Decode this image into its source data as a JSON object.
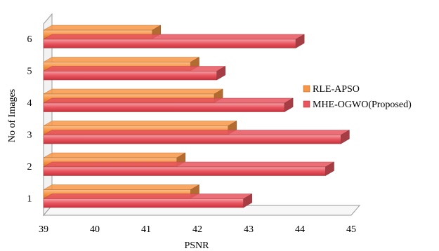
{
  "chart_data": {
    "type": "bar",
    "orientation": "horizontal",
    "style": "3d",
    "categories": [
      "1",
      "2",
      "3",
      "4",
      "5",
      "6"
    ],
    "series": [
      {
        "name": "RLE-APSO",
        "values": [
          41.87,
          41.6,
          42.6,
          42.33,
          41.87,
          41.12
        ],
        "color": "#F79646"
      },
      {
        "name": "MHE-OGWO(Proposed)",
        "values": [
          42.9,
          44.5,
          44.8,
          43.7,
          42.38,
          43.92
        ],
        "color": "#E8555F"
      }
    ],
    "xlabel": "PSNR",
    "ylabel": "No of Images",
    "xlim": [
      39,
      45
    ],
    "xticks": [
      "39",
      "40",
      "41",
      "42",
      "43",
      "44",
      "45"
    ],
    "grid": false,
    "legend_position": "right"
  }
}
